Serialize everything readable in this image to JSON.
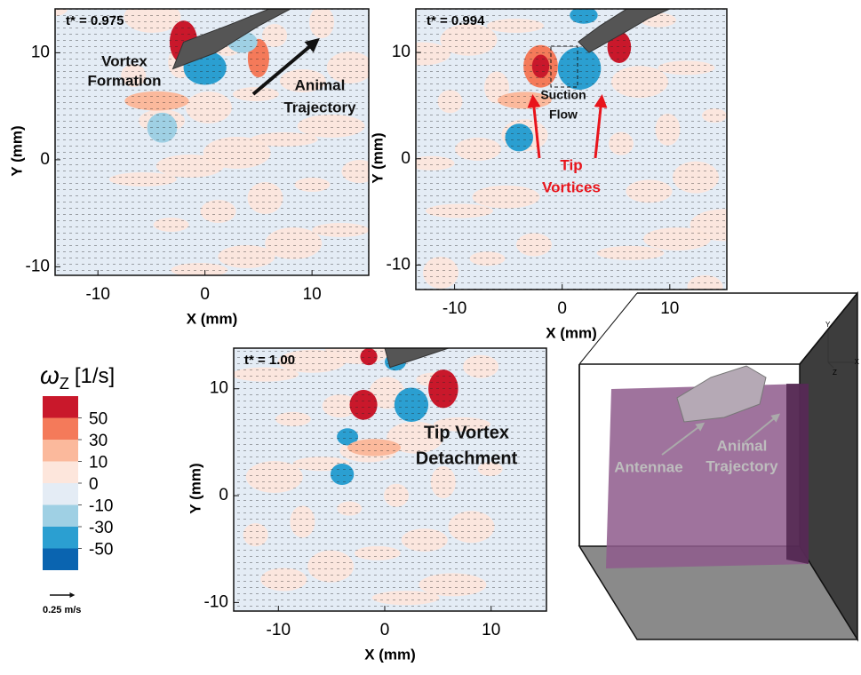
{
  "chart_data": [
    {
      "type": "contour",
      "title": "t* = 0.975",
      "x_label": "X (mm)",
      "y_label": "Y (mm)",
      "xlim": [
        -14,
        15.3
      ],
      "ylim": [
        -10.8,
        14.1
      ],
      "xticks": [
        -10,
        0,
        10
      ],
      "yticks": [
        -10,
        0,
        10
      ],
      "annotations": [
        {
          "lines": [
            "Vortex",
            "Formation"
          ],
          "color": "#111111"
        },
        {
          "lines": [
            "Animal",
            "Trajectory"
          ],
          "color": "#111111"
        }
      ]
    },
    {
      "type": "contour",
      "title": "t* = 0.994",
      "x_label": "X (mm)",
      "y_label": "Y (mm)",
      "xlim": [
        -13.6,
        15.3
      ],
      "ylim": [
        -12.3,
        14.1
      ],
      "xticks": [
        -10,
        0,
        10
      ],
      "yticks": [
        -10,
        0,
        10
      ],
      "annotations": [
        {
          "lines": [
            "Suction",
            "Flow"
          ],
          "color": "#111111"
        },
        {
          "lines": [
            "Tip",
            "Vortices"
          ],
          "color": "#e8141b"
        }
      ]
    },
    {
      "type": "contour",
      "title": "t* = 1.00",
      "x_label": "X (mm)",
      "y_label": "Y (mm)",
      "xlim": [
        -14.2,
        15.2
      ],
      "ylim": [
        -10.8,
        13.8
      ],
      "xticks": [
        -10,
        0,
        10
      ],
      "yticks": [
        -10,
        0,
        10
      ],
      "annotations": [
        {
          "lines": [
            "Tip Vortex",
            "Detachment"
          ],
          "color": "#111111"
        }
      ]
    }
  ],
  "colorbar": {
    "symbol": "ω",
    "subscript": "Z",
    "unit": "[1/s]",
    "levels": [
      50,
      30,
      10,
      0,
      -10,
      -30,
      -50
    ],
    "colors": [
      "#c9182b",
      "#f47a5a",
      "#fbb99c",
      "#fde6dc",
      "#e4ecf5",
      "#9fd0e4",
      "#2b9fd1",
      "#0a64b0"
    ]
  },
  "scale_label": "0.25 m/s",
  "schematic": {
    "labels": [
      [
        "Antennae"
      ],
      [
        "Animal",
        "Trajectory"
      ]
    ],
    "axes": [
      "Y",
      "X",
      "Z"
    ]
  }
}
